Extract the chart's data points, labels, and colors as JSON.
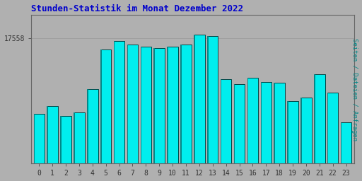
{
  "title": "Stunden-Statistik im Monat Dezember 2022",
  "ylabel": "Seiten / Dateien / Anfragen",
  "categories": [
    0,
    1,
    2,
    3,
    4,
    5,
    6,
    7,
    8,
    9,
    10,
    11,
    12,
    13,
    14,
    15,
    16,
    17,
    18,
    19,
    20,
    21,
    22,
    23
  ],
  "values": [
    17100,
    17150,
    17090,
    17110,
    17250,
    17490,
    17540,
    17520,
    17510,
    17500,
    17510,
    17520,
    17580,
    17570,
    17310,
    17280,
    17320,
    17295,
    17290,
    17180,
    17200,
    17340,
    17230,
    17050
  ],
  "ytick_label": "17558",
  "ytick_val": 17558,
  "ylim_min": 16800,
  "ylim_max": 17700,
  "bar_fill_color": "#00EEEE",
  "bar_edge_color": "#004444",
  "bar_left_color": "#008888",
  "background_color": "#B0B0B0",
  "plot_bg_color": "#B0B0B0",
  "title_color": "#0000CC",
  "ylabel_color": "#008888",
  "tick_color": "#333333",
  "grid_color": "#999999",
  "bar_width": 0.82,
  "title_fontsize": 9,
  "tick_fontsize": 7
}
